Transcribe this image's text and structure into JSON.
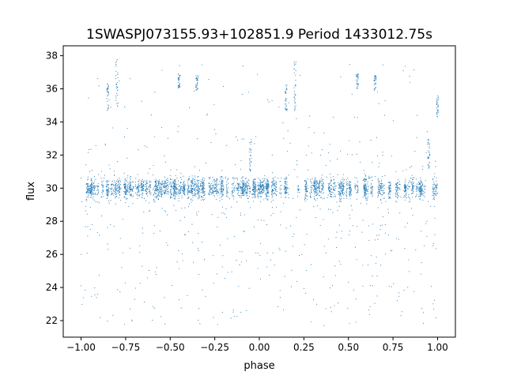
{
  "chart_data": {
    "type": "scatter",
    "title": "1SWASPJ073155.93+102851.9 Period 1433012.75s",
    "xlabel": "phase",
    "ylabel": "flux",
    "xlim": [
      -1.1,
      1.1
    ],
    "ylim": [
      21.0,
      38.6
    ],
    "x_ticks": [
      -1.0,
      -0.75,
      -0.5,
      -0.25,
      0.0,
      0.25,
      0.5,
      0.75,
      1.0
    ],
    "x_tick_labels": [
      "−1.00",
      "−0.75",
      "−0.50",
      "−0.25",
      "0.00",
      "0.25",
      "0.50",
      "0.75",
      "1.00"
    ],
    "y_ticks": [
      22,
      24,
      26,
      28,
      30,
      32,
      34,
      36,
      38
    ],
    "y_tick_labels": [
      "22",
      "24",
      "26",
      "28",
      "30",
      "32",
      "34",
      "36",
      "38"
    ],
    "grid": false,
    "legend": "none",
    "marker_color": "#1f77b4",
    "series": [
      {
        "style": "dense band of points folded over two cycles",
        "baseline_flux": 30.0,
        "baseline_spread": 0.6,
        "x_range": [
          -1.0,
          1.0
        ],
        "clusters": [
          {
            "x": -0.85,
            "y_range": [
              34.6,
              36.3
            ]
          },
          {
            "x": -0.8,
            "y_range": [
              34.7,
              37.8
            ]
          },
          {
            "x": -0.45,
            "y_range": [
              36.0,
              36.9
            ]
          },
          {
            "x": -0.35,
            "y_range": [
              35.9,
              36.8
            ]
          },
          {
            "x": -0.05,
            "y_range": [
              31.0,
              33.0
            ]
          },
          {
            "x": 0.15,
            "y_range": [
              34.6,
              36.3
            ]
          },
          {
            "x": 0.2,
            "y_range": [
              34.7,
              37.8
            ]
          },
          {
            "x": 0.55,
            "y_range": [
              36.0,
              36.9
            ]
          },
          {
            "x": 0.65,
            "y_range": [
              35.9,
              36.8
            ]
          },
          {
            "x": 0.95,
            "y_range": [
              31.0,
              33.0
            ]
          },
          {
            "x": 1.0,
            "y_range": [
              34.3,
              35.6
            ]
          }
        ]
      }
    ]
  }
}
